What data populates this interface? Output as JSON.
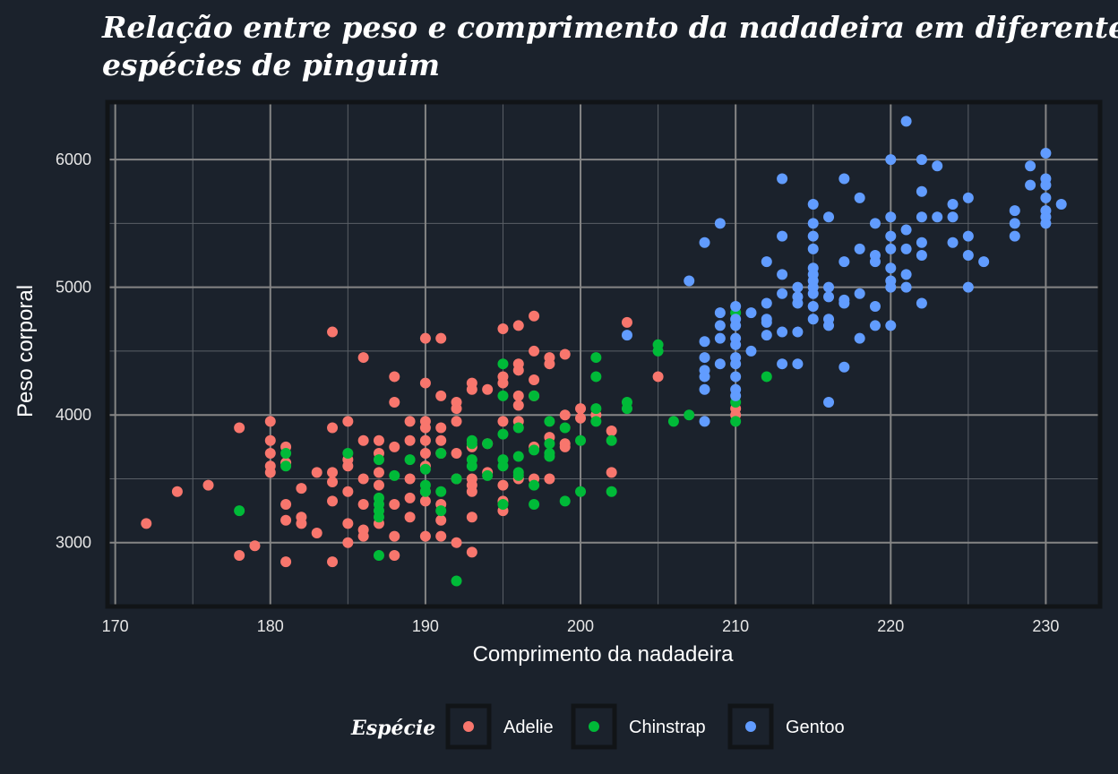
{
  "chart_data": {
    "type": "scatter",
    "title_lines": [
      "Relação entre peso e comprimento da nadadeira em diferentes",
      "espécies de pinguim"
    ],
    "xlabel": "Comprimento da nadadeira",
    "ylabel": "Peso corporal",
    "xlim": [
      169.5,
      233.5
    ],
    "ylim": [
      2500,
      6450
    ],
    "x_ticks": [
      170,
      180,
      190,
      200,
      210,
      220,
      230
    ],
    "y_ticks": [
      3000,
      4000,
      5000,
      6000
    ],
    "grid": true,
    "legend": {
      "title": "Espécie",
      "position": "bottom"
    },
    "series": [
      {
        "name": "Adelie",
        "color": "#f8766d",
        "points": [
          [
            172,
            3150
          ],
          [
            174,
            3400
          ],
          [
            176,
            3450
          ],
          [
            178,
            3900
          ],
          [
            178,
            2900
          ],
          [
            179,
            2975
          ],
          [
            180,
            3950
          ],
          [
            180,
            3800
          ],
          [
            180,
            3700
          ],
          [
            180,
            3600
          ],
          [
            180,
            3550
          ],
          [
            181,
            3750
          ],
          [
            181,
            3625
          ],
          [
            181,
            3300
          ],
          [
            181,
            3175
          ],
          [
            181,
            2850
          ],
          [
            182,
            3425
          ],
          [
            182,
            3200
          ],
          [
            182,
            3150
          ],
          [
            183,
            3550
          ],
          [
            183,
            3075
          ],
          [
            184,
            4650
          ],
          [
            184,
            3900
          ],
          [
            184,
            3550
          ],
          [
            184,
            3475
          ],
          [
            184,
            3325
          ],
          [
            184,
            2850
          ],
          [
            185,
            3950
          ],
          [
            185,
            3650
          ],
          [
            185,
            3600
          ],
          [
            185,
            3400
          ],
          [
            185,
            3150
          ],
          [
            185,
            3000
          ],
          [
            186,
            4450
          ],
          [
            186,
            3800
          ],
          [
            186,
            3500
          ],
          [
            186,
            3300
          ],
          [
            186,
            3100
          ],
          [
            186,
            3050
          ],
          [
            187,
            3800
          ],
          [
            187,
            3700
          ],
          [
            187,
            3550
          ],
          [
            187,
            3450
          ],
          [
            187,
            3150
          ],
          [
            188,
            4300
          ],
          [
            188,
            4100
          ],
          [
            188,
            3750
          ],
          [
            188,
            3300
          ],
          [
            188,
            3050
          ],
          [
            188,
            2900
          ],
          [
            189,
            3950
          ],
          [
            189,
            3800
          ],
          [
            189,
            3500
          ],
          [
            189,
            3350
          ],
          [
            189,
            3200
          ],
          [
            190,
            4600
          ],
          [
            190,
            4250
          ],
          [
            190,
            3950
          ],
          [
            190,
            3900
          ],
          [
            190,
            3800
          ],
          [
            190,
            3700
          ],
          [
            190,
            3600
          ],
          [
            190,
            3400
          ],
          [
            190,
            3325
          ],
          [
            190,
            3050
          ],
          [
            191,
            4600
          ],
          [
            191,
            4150
          ],
          [
            191,
            3900
          ],
          [
            191,
            3800
          ],
          [
            191,
            3700
          ],
          [
            191,
            3300
          ],
          [
            191,
            3175
          ],
          [
            191,
            3050
          ],
          [
            192,
            4100
          ],
          [
            192,
            4050
          ],
          [
            192,
            3950
          ],
          [
            192,
            3700
          ],
          [
            192,
            3500
          ],
          [
            192,
            3000
          ],
          [
            193,
            4250
          ],
          [
            193,
            4200
          ],
          [
            193,
            3750
          ],
          [
            193,
            3500
          ],
          [
            193,
            3450
          ],
          [
            193,
            3400
          ],
          [
            193,
            3200
          ],
          [
            193,
            2925
          ],
          [
            194,
            4200
          ],
          [
            194,
            3775
          ],
          [
            194,
            3550
          ],
          [
            195,
            4675
          ],
          [
            195,
            4300
          ],
          [
            195,
            4250
          ],
          [
            195,
            3950
          ],
          [
            195,
            3450
          ],
          [
            195,
            3325
          ],
          [
            195,
            3250
          ],
          [
            196,
            4700
          ],
          [
            196,
            4400
          ],
          [
            196,
            4350
          ],
          [
            196,
            4150
          ],
          [
            196,
            4075
          ],
          [
            196,
            3950
          ],
          [
            196,
            3500
          ],
          [
            197,
            4775
          ],
          [
            197,
            4500
          ],
          [
            197,
            4275
          ],
          [
            197,
            4150
          ],
          [
            197,
            3750
          ],
          [
            197,
            3500
          ],
          [
            198,
            4450
          ],
          [
            198,
            4400
          ],
          [
            198,
            3825
          ],
          [
            198,
            3500
          ],
          [
            199,
            4475
          ],
          [
            199,
            4000
          ],
          [
            199,
            3775
          ],
          [
            199,
            3750
          ],
          [
            200,
            4050
          ],
          [
            200,
            3975
          ],
          [
            201,
            4000
          ],
          [
            202,
            3875
          ],
          [
            202,
            3550
          ],
          [
            203,
            4725
          ],
          [
            205,
            4300
          ],
          [
            210,
            4000
          ],
          [
            210,
            4050
          ]
        ]
      },
      {
        "name": "Chinstrap",
        "color": "#00ba38",
        "points": [
          [
            178,
            3250
          ],
          [
            181,
            3700
          ],
          [
            181,
            3600
          ],
          [
            185,
            3700
          ],
          [
            187,
            3650
          ],
          [
            187,
            3350
          ],
          [
            187,
            3300
          ],
          [
            187,
            3250
          ],
          [
            187,
            3200
          ],
          [
            187,
            2900
          ],
          [
            188,
            3525
          ],
          [
            189,
            3650
          ],
          [
            190,
            3575
          ],
          [
            190,
            3450
          ],
          [
            190,
            3400
          ],
          [
            191,
            3700
          ],
          [
            191,
            3400
          ],
          [
            191,
            3250
          ],
          [
            192,
            3500
          ],
          [
            192,
            2700
          ],
          [
            193,
            3800
          ],
          [
            193,
            3775
          ],
          [
            193,
            3650
          ],
          [
            193,
            3600
          ],
          [
            194,
            3775
          ],
          [
            194,
            3525
          ],
          [
            195,
            4400
          ],
          [
            195,
            4150
          ],
          [
            195,
            3850
          ],
          [
            195,
            3650
          ],
          [
            195,
            3600
          ],
          [
            195,
            3300
          ],
          [
            196,
            3900
          ],
          [
            196,
            3675
          ],
          [
            196,
            3550
          ],
          [
            196,
            3525
          ],
          [
            197,
            4150
          ],
          [
            197,
            3725
          ],
          [
            197,
            3450
          ],
          [
            197,
            3300
          ],
          [
            198,
            3950
          ],
          [
            198,
            3775
          ],
          [
            198,
            3700
          ],
          [
            198,
            3675
          ],
          [
            199,
            3900
          ],
          [
            199,
            3325
          ],
          [
            200,
            3800
          ],
          [
            200,
            3400
          ],
          [
            201,
            4450
          ],
          [
            201,
            4300
          ],
          [
            201,
            4050
          ],
          [
            201,
            3950
          ],
          [
            202,
            3800
          ],
          [
            202,
            3400
          ],
          [
            203,
            4100
          ],
          [
            203,
            4050
          ],
          [
            205,
            4550
          ],
          [
            205,
            4500
          ],
          [
            206,
            3950
          ],
          [
            207,
            4000
          ],
          [
            210,
            4800
          ],
          [
            210,
            4100
          ],
          [
            210,
            3950
          ],
          [
            212,
            4300
          ]
        ]
      },
      {
        "name": "Gentoo",
        "color": "#619cff",
        "points": [
          [
            203,
            4625
          ],
          [
            207,
            5050
          ],
          [
            208,
            5350
          ],
          [
            208,
            4575
          ],
          [
            208,
            4450
          ],
          [
            208,
            4350
          ],
          [
            208,
            4300
          ],
          [
            208,
            4200
          ],
          [
            208,
            3950
          ],
          [
            209,
            5500
          ],
          [
            209,
            4800
          ],
          [
            209,
            4700
          ],
          [
            209,
            4600
          ],
          [
            209,
            4400
          ],
          [
            210,
            4850
          ],
          [
            210,
            4750
          ],
          [
            210,
            4700
          ],
          [
            210,
            4600
          ],
          [
            210,
            4550
          ],
          [
            210,
            4450
          ],
          [
            210,
            4400
          ],
          [
            210,
            4300
          ],
          [
            210,
            4200
          ],
          [
            210,
            4150
          ],
          [
            211,
            4800
          ],
          [
            211,
            4500
          ],
          [
            212,
            5200
          ],
          [
            212,
            4875
          ],
          [
            212,
            4750
          ],
          [
            212,
            4725
          ],
          [
            212,
            4625
          ],
          [
            213,
            5850
          ],
          [
            213,
            5400
          ],
          [
            213,
            5100
          ],
          [
            213,
            4950
          ],
          [
            213,
            4650
          ],
          [
            213,
            4400
          ],
          [
            214,
            5000
          ],
          [
            214,
            4925
          ],
          [
            214,
            4875
          ],
          [
            214,
            4650
          ],
          [
            214,
            4400
          ],
          [
            215,
            5650
          ],
          [
            215,
            5500
          ],
          [
            215,
            5400
          ],
          [
            215,
            5300
          ],
          [
            215,
            5150
          ],
          [
            215,
            5100
          ],
          [
            215,
            5050
          ],
          [
            215,
            5000
          ],
          [
            215,
            4950
          ],
          [
            215,
            4850
          ],
          [
            215,
            4750
          ],
          [
            216,
            5550
          ],
          [
            216,
            5000
          ],
          [
            216,
            4925
          ],
          [
            216,
            4750
          ],
          [
            216,
            4700
          ],
          [
            216,
            4100
          ],
          [
            217,
            5850
          ],
          [
            217,
            5200
          ],
          [
            217,
            4900
          ],
          [
            217,
            4875
          ],
          [
            217,
            4375
          ],
          [
            218,
            5700
          ],
          [
            218,
            5300
          ],
          [
            218,
            4950
          ],
          [
            218,
            4600
          ],
          [
            219,
            5500
          ],
          [
            219,
            5250
          ],
          [
            219,
            5200
          ],
          [
            219,
            4850
          ],
          [
            219,
            4700
          ],
          [
            220,
            6000
          ],
          [
            220,
            5550
          ],
          [
            220,
            5400
          ],
          [
            220,
            5300
          ],
          [
            220,
            5150
          ],
          [
            220,
            5050
          ],
          [
            220,
            5000
          ],
          [
            220,
            4700
          ],
          [
            221,
            6300
          ],
          [
            221,
            5450
          ],
          [
            221,
            5300
          ],
          [
            221,
            5100
          ],
          [
            221,
            5000
          ],
          [
            222,
            6000
          ],
          [
            222,
            5750
          ],
          [
            222,
            5550
          ],
          [
            222,
            5350
          ],
          [
            222,
            5250
          ],
          [
            222,
            4875
          ],
          [
            223,
            5950
          ],
          [
            223,
            5550
          ],
          [
            224,
            5650
          ],
          [
            224,
            5550
          ],
          [
            224,
            5350
          ],
          [
            225,
            5700
          ],
          [
            225,
            5400
          ],
          [
            225,
            5250
          ],
          [
            225,
            5000
          ],
          [
            226,
            5200
          ],
          [
            228,
            5600
          ],
          [
            228,
            5500
          ],
          [
            228,
            5400
          ],
          [
            229,
            5950
          ],
          [
            229,
            5800
          ],
          [
            230,
            6050
          ],
          [
            230,
            5850
          ],
          [
            230,
            5800
          ],
          [
            230,
            5700
          ],
          [
            230,
            5600
          ],
          [
            230,
            5550
          ],
          [
            230,
            5500
          ],
          [
            231,
            5650
          ]
        ]
      }
    ]
  }
}
